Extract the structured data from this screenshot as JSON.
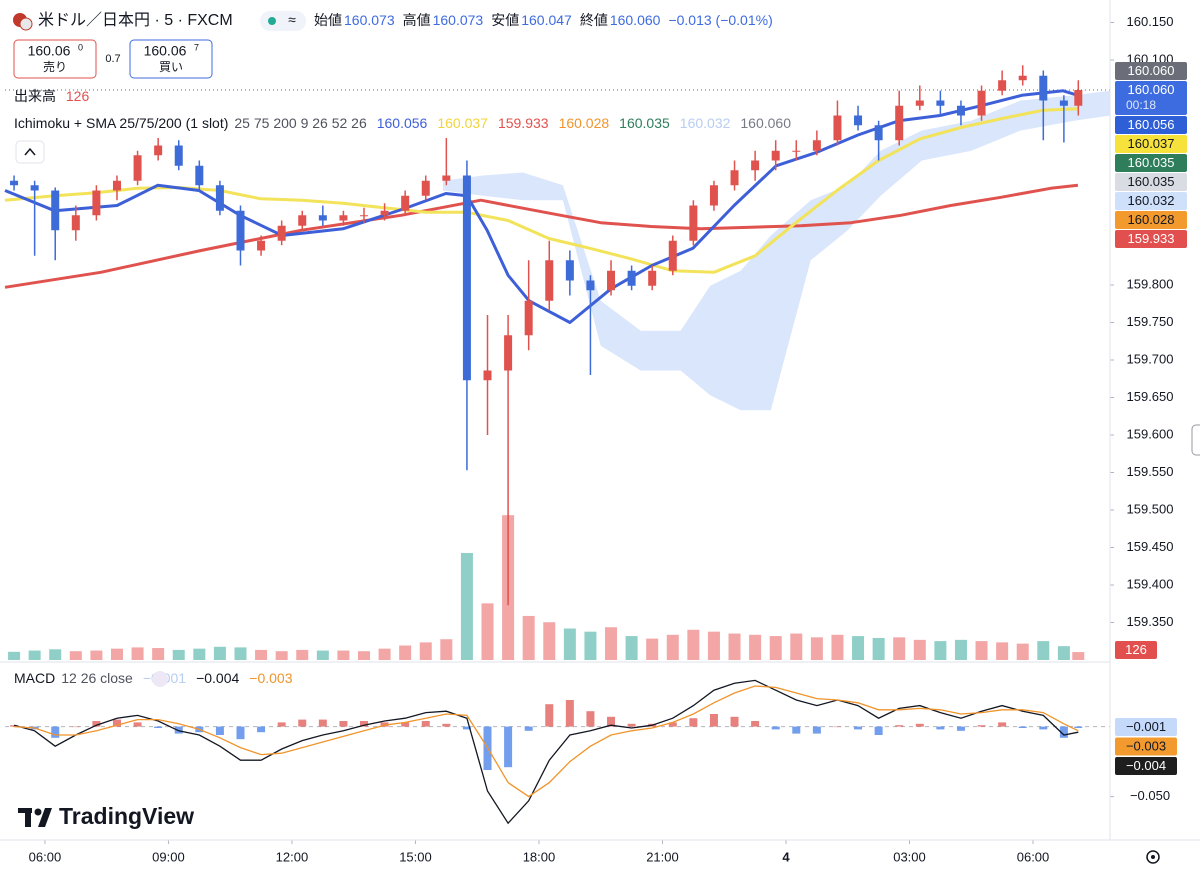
{
  "header": {
    "symbol": "米ドル／日本円 · 5 · FXCM",
    "ohlc": [
      {
        "label": "始値",
        "value": "160.073"
      },
      {
        "label": "高値",
        "value": "160.073"
      },
      {
        "label": "安値",
        "value": "160.047"
      },
      {
        "label": "終値",
        "value": "160.060"
      }
    ],
    "change": "−0.013 (−0.01%)"
  },
  "trade": {
    "sell_price": "160.06",
    "sell_sup": "0",
    "sell_label": "売り",
    "spread": "0.7",
    "buy_price": "160.06",
    "buy_sup": "7",
    "buy_label": "買い"
  },
  "volume_legend": {
    "label": "出来高"
  },
  "indicator_legend": {
    "name": "Ichimoku + SMA 25/75/200 (1 slot)",
    "params": "25 75 200 9 26 52 26",
    "values": [
      {
        "text": "160.056",
        "color": "#3d5fd8"
      },
      {
        "text": "160.037",
        "color": "#f2d43a"
      },
      {
        "text": "159.933",
        "color": "#e0524e"
      },
      {
        "text": "160.028",
        "color": "#f0942b"
      },
      {
        "text": "160.035",
        "color": "#2e7d5b"
      },
      {
        "text": "160.032",
        "color": "#b7cdf2"
      },
      {
        "text": "160.060",
        "color": "#787b86"
      }
    ]
  },
  "price_tags": [
    {
      "text": "160.060",
      "color": "#6b6e78",
      "text_color": "#ffffff"
    },
    {
      "text": "160.060",
      "sub": "00:18",
      "color": "#3d6be0",
      "text_color": "#ffffff"
    },
    {
      "text": "160.056",
      "color": "#2f5fd6",
      "text_color": "#ffffff"
    },
    {
      "text": "160.037",
      "color": "#f7e23b",
      "text_color": "#131722"
    },
    {
      "text": "160.035",
      "color": "#2e7d5b",
      "text_color": "#ffffff"
    },
    {
      "text": "160.035",
      "color": "#d9dce3",
      "text_color": "#131722"
    },
    {
      "text": "160.032",
      "color": "#cfe0fa",
      "text_color": "#131722"
    },
    {
      "text": "160.028",
      "color": "#f39a2e",
      "text_color": "#131722"
    },
    {
      "text": "159.933",
      "color": "#e24f4f",
      "text_color": "#ffffff"
    }
  ],
  "macd_legend": {
    "name": "MACD",
    "params": "12 26 close",
    "values": [
      {
        "text": "−0.001",
        "color": "#b7cdf2"
      },
      {
        "text": "−0.004",
        "color": "#131722"
      },
      {
        "text": "−0.003",
        "color": "#f0942b"
      }
    ]
  },
  "macd_tags": [
    {
      "text": "−0.001",
      "color": "#c5d9fa",
      "text_color": "#131722"
    },
    {
      "text": "−0.003",
      "color": "#f39a2e",
      "text_color": "#131722"
    },
    {
      "text": "−0.004",
      "color": "#1e1e1e",
      "text_color": "#ffffff"
    }
  ],
  "watermark": "TradingView",
  "chart_data": [
    {
      "type": "candlestick",
      "xlim": [
        5.03,
        31.87
      ],
      "xticks": [
        {
          "value": 6,
          "label": "06:00"
        },
        {
          "value": 9,
          "label": "09:00"
        },
        {
          "value": 12,
          "label": "12:00"
        },
        {
          "value": 15,
          "label": "15:00"
        },
        {
          "value": 18,
          "label": "18:00"
        },
        {
          "value": 21,
          "label": "21:00"
        },
        {
          "value": 24,
          "label": "4"
        },
        {
          "value": 27,
          "label": "03:00"
        },
        {
          "value": 30,
          "label": "06:00"
        }
      ],
      "ylim": [
        159.3,
        160.18
      ],
      "yticks": [
        {
          "value": 159.35,
          "label": "159.350"
        },
        {
          "value": 159.4,
          "label": "159.400"
        },
        {
          "value": 159.45,
          "label": "159.450"
        },
        {
          "value": 159.5,
          "label": "159.500"
        },
        {
          "value": 159.55,
          "label": "159.550"
        },
        {
          "value": 159.6,
          "label": "159.600"
        },
        {
          "value": 159.65,
          "label": "159.650"
        },
        {
          "value": 159.7,
          "label": "159.700"
        },
        {
          "value": 159.75,
          "label": "159.750"
        },
        {
          "value": 159.8,
          "label": "159.800"
        },
        {
          "value": 160.1,
          "label": "160.100"
        },
        {
          "value": 160.15,
          "label": "160.150"
        }
      ],
      "up_color": "#e0524e",
      "down_color": "#3d6bd8",
      "x": [
        5.25,
        5.75,
        6.25,
        6.75,
        7.25,
        7.75,
        8.25,
        8.75,
        9.25,
        9.75,
        10.25,
        10.75,
        11.25,
        11.75,
        12.25,
        12.75,
        13.25,
        13.75,
        14.25,
        14.75,
        15.25,
        15.75,
        16.25,
        16.75,
        17.25,
        17.75,
        18.25,
        18.75,
        19.25,
        19.75,
        20.25,
        20.75,
        21.25,
        21.75,
        22.25,
        22.75,
        23.25,
        23.75,
        24.25,
        24.75,
        25.25,
        25.75,
        26.25,
        26.75,
        27.25,
        27.75,
        28.25,
        28.75,
        29.25,
        29.75,
        30.25,
        30.75,
        31.1
      ],
      "open": [
        159.939,
        159.933,
        159.926,
        159.873,
        159.893,
        159.926,
        159.939,
        159.973,
        159.986,
        159.959,
        159.933,
        159.899,
        159.846,
        159.859,
        159.879,
        159.893,
        159.886,
        159.893,
        159.893,
        159.899,
        159.919,
        159.939,
        159.946,
        159.673,
        159.686,
        159.733,
        159.779,
        159.833,
        159.806,
        159.793,
        159.819,
        159.799,
        159.819,
        159.859,
        159.906,
        159.933,
        159.953,
        159.966,
        159.979,
        159.979,
        159.993,
        160.026,
        160.013,
        159.993,
        160.039,
        160.046,
        160.039,
        160.026,
        160.059,
        160.073,
        160.079,
        160.046,
        160.039
      ],
      "high": [
        159.946,
        159.939,
        159.93,
        159.906,
        159.933,
        159.946,
        159.979,
        159.996,
        159.993,
        159.966,
        159.939,
        159.906,
        159.866,
        159.886,
        159.899,
        159.906,
        159.899,
        159.903,
        159.909,
        159.926,
        159.946,
        159.996,
        159.966,
        159.76,
        159.76,
        159.833,
        159.859,
        159.846,
        159.813,
        159.833,
        159.826,
        159.826,
        159.866,
        159.913,
        159.939,
        159.966,
        159.979,
        159.993,
        159.993,
        160.006,
        160.046,
        160.039,
        160.019,
        160.059,
        160.066,
        160.059,
        160.046,
        160.066,
        160.086,
        160.093,
        160.086,
        160.053,
        160.073
      ],
      "low": [
        159.926,
        159.839,
        159.833,
        159.859,
        159.886,
        159.913,
        159.933,
        159.966,
        159.953,
        159.926,
        159.893,
        159.826,
        159.839,
        159.853,
        159.873,
        159.879,
        159.879,
        159.883,
        159.886,
        159.893,
        159.913,
        159.933,
        159.553,
        159.6,
        159.373,
        159.713,
        159.766,
        159.786,
        159.68,
        159.786,
        159.793,
        159.793,
        159.813,
        159.853,
        159.899,
        159.926,
        159.939,
        159.953,
        159.966,
        159.973,
        159.986,
        160.006,
        159.966,
        159.986,
        160.033,
        160.026,
        160.013,
        160.019,
        160.053,
        160.066,
        159.993,
        159.99,
        160.026
      ],
      "close": [
        159.933,
        159.926,
        159.873,
        159.893,
        159.926,
        159.939,
        159.973,
        159.986,
        159.959,
        159.933,
        159.899,
        159.846,
        159.859,
        159.879,
        159.893,
        159.886,
        159.893,
        159.893,
        159.899,
        159.919,
        159.939,
        159.946,
        159.673,
        159.686,
        159.733,
        159.779,
        159.833,
        159.806,
        159.793,
        159.819,
        159.799,
        159.819,
        159.859,
        159.906,
        159.933,
        159.953,
        159.966,
        159.979,
        159.979,
        159.993,
        160.026,
        160.013,
        159.993,
        160.039,
        160.046,
        160.039,
        160.026,
        160.059,
        160.073,
        160.079,
        160.046,
        160.039,
        160.06
      ],
      "volume": {
        "ylim": [
          0,
          2700
        ],
        "up_color": "#f2a6a6",
        "down_color": "#8fcfc8",
        "values": [
          130,
          150,
          170,
          140,
          150,
          180,
          200,
          190,
          160,
          180,
          210,
          200,
          160,
          140,
          160,
          150,
          150,
          140,
          180,
          230,
          280,
          330,
          1700,
          900,
          2300,
          700,
          600,
          500,
          450,
          520,
          380,
          340,
          400,
          480,
          450,
          420,
          400,
          380,
          420,
          360,
          400,
          380,
          350,
          360,
          320,
          300,
          320,
          300,
          280,
          260,
          300,
          220,
          126
        ]
      },
      "cloud": {
        "color": "#cfe0fa",
        "x": [
          15.67,
          16.64,
          17.61,
          18.58,
          19.5,
          20.47,
          21.44,
          22.16,
          22.9,
          23.63,
          24.6,
          25.5,
          26.3,
          27.3,
          28.5,
          29.7,
          31.0,
          31.87
        ],
        "upper": [
          159.939,
          159.946,
          159.95,
          159.933,
          159.779,
          159.739,
          159.739,
          159.799,
          159.819,
          159.866,
          159.913,
          159.933,
          159.979,
          160.006,
          160.019,
          160.046,
          160.053,
          160.059
        ],
        "lower": [
          159.926,
          159.919,
          159.913,
          159.913,
          159.719,
          159.686,
          159.686,
          159.653,
          159.633,
          159.633,
          159.833,
          159.873,
          159.919,
          159.966,
          159.979,
          160.006,
          160.019,
          160.026
        ]
      },
      "overlays": [
        {
          "color": "#e0524e",
          "width": 3,
          "x": [
            5.03,
            7.36,
            9.79,
            12.22,
            14.65,
            16.59,
            17.56,
            18.53,
            19.5,
            20.72,
            21.93,
            23.15,
            24.36,
            25.58,
            26.79,
            28.0,
            29.22,
            30.43,
            31.09
          ],
          "values": [
            159.797,
            159.817,
            159.846,
            159.873,
            159.893,
            159.913,
            159.903,
            159.893,
            159.883,
            159.878,
            159.875,
            159.877,
            159.879,
            159.883,
            159.893,
            159.906,
            159.917,
            159.929,
            159.933
          ]
        },
        {
          "color": "#f2e35a",
          "width": 3,
          "x": [
            5.03,
            6.24,
            7.24,
            8.24,
            9.26,
            10.25,
            11.24,
            12.24,
            13.24,
            14.24,
            15.26,
            16.25,
            17.25,
            18.24,
            19.24,
            20.23,
            21.25,
            22.25,
            23.25,
            24.24,
            25.24,
            26.25,
            27.26,
            28.25,
            29.25,
            30.24,
            31.09
          ],
          "values": [
            159.913,
            159.919,
            159.923,
            159.929,
            159.93,
            159.926,
            159.915,
            159.913,
            159.909,
            159.903,
            159.897,
            159.897,
            159.886,
            159.862,
            159.849,
            159.835,
            159.819,
            159.817,
            159.839,
            159.883,
            159.926,
            159.966,
            159.995,
            160.01,
            160.022,
            160.033,
            160.035
          ]
        },
        {
          "color": "#3d5fd8",
          "width": 3,
          "x": [
            5.03,
            6.24,
            7.75,
            8.74,
            9.74,
            10.74,
            11.76,
            13.24,
            14.74,
            15.74,
            16.25,
            16.74,
            17.25,
            17.76,
            18.75,
            19.75,
            20.74,
            21.74,
            22.74,
            23.76,
            24.75,
            25.75,
            26.74,
            27.74,
            28.73,
            29.73,
            30.73,
            31.09
          ],
          "values": [
            159.926,
            159.899,
            159.906,
            159.933,
            159.926,
            159.893,
            159.866,
            159.875,
            159.902,
            159.922,
            159.919,
            159.873,
            159.813,
            159.779,
            159.75,
            159.795,
            159.826,
            159.849,
            159.906,
            159.959,
            159.977,
            160.0,
            160.019,
            160.026,
            160.039,
            160.053,
            160.059,
            160.053
          ]
        }
      ]
    },
    {
      "type": "macd",
      "ylim": [
        -0.081,
        0.044
      ],
      "yticks": [
        {
          "value": -0.05,
          "label": "−0.050"
        }
      ],
      "pos_color": "#e0625e",
      "neg_color": "#4f86e8",
      "series": [
        {
          "color": "#131722",
          "values": [
            0.001,
            -0.003,
            -0.014,
            -0.006,
            0.001,
            0.006,
            0.008,
            0.004,
            -0.003,
            -0.006,
            -0.014,
            -0.024,
            -0.024,
            -0.016,
            -0.01,
            -0.006,
            -0.003,
            0.001,
            0.004,
            0.006,
            0.01,
            0.011,
            0.006,
            -0.046,
            -0.069,
            -0.053,
            -0.024,
            -0.006,
            -0.003,
            0.001,
            -0.001,
            0.001,
            0.006,
            0.015,
            0.026,
            0.031,
            0.033,
            0.026,
            0.019,
            0.015,
            0.019,
            0.015,
            0.006,
            0.013,
            0.015,
            0.01,
            0.006,
            0.011,
            0.015,
            0.011,
            0.008,
            -0.006,
            -0.004
          ]
        },
        {
          "color": "#f0942b",
          "values": [
            0.0,
            -0.001,
            -0.006,
            -0.006,
            -0.003,
            0.001,
            0.005,
            0.005,
            0.002,
            -0.002,
            -0.008,
            -0.015,
            -0.02,
            -0.019,
            -0.015,
            -0.011,
            -0.007,
            -0.003,
            0.001,
            0.003,
            0.006,
            0.009,
            0.008,
            -0.015,
            -0.04,
            -0.05,
            -0.04,
            -0.025,
            -0.014,
            -0.006,
            -0.003,
            -0.001,
            0.003,
            0.009,
            0.017,
            0.024,
            0.029,
            0.028,
            0.024,
            0.02,
            0.019,
            0.017,
            0.012,
            0.012,
            0.013,
            0.012,
            0.009,
            0.01,
            0.012,
            0.012,
            0.01,
            0.002,
            -0.003
          ]
        }
      ],
      "histogram": [
        0.001,
        -0.002,
        -0.008,
        0.0,
        0.004,
        0.005,
        0.003,
        -0.001,
        -0.005,
        -0.004,
        -0.006,
        -0.009,
        -0.004,
        0.003,
        0.005,
        0.005,
        0.004,
        0.004,
        0.003,
        0.003,
        0.004,
        0.002,
        -0.002,
        -0.031,
        -0.029,
        -0.003,
        0.016,
        0.019,
        0.011,
        0.007,
        0.002,
        0.002,
        0.003,
        0.006,
        0.009,
        0.007,
        0.004,
        -0.002,
        -0.005,
        -0.005,
        0.0,
        -0.002,
        -0.006,
        0.001,
        0.002,
        -0.002,
        -0.003,
        0.001,
        0.003,
        -0.001,
        -0.002,
        -0.008,
        -0.001
      ]
    }
  ]
}
